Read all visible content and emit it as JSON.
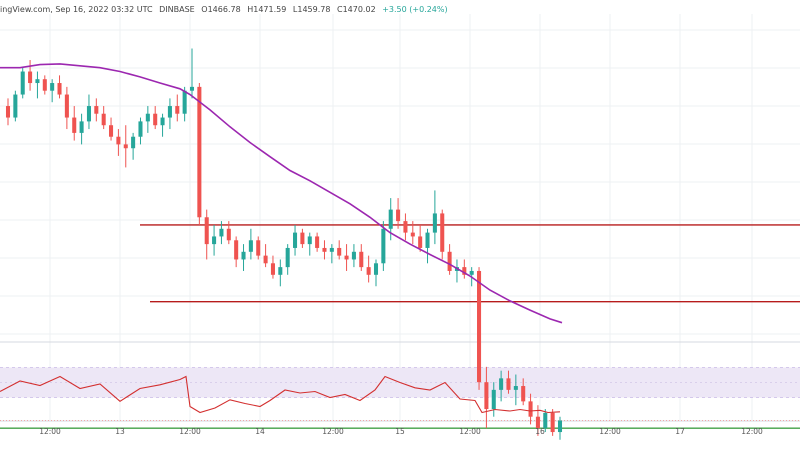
{
  "header": {
    "source": "ingView.com, Sep 16, 2022 03:32 UTC",
    "exchange": "DINBASE",
    "open": "O1466.78",
    "high": "H1471.59",
    "low": "L1459.78",
    "close": "C1470.02",
    "change": "+3.50 (+0.24%)"
  },
  "colors": {
    "up": "#26a69a",
    "down": "#ef5350",
    "ma": "#9c27b0",
    "resistance": "#b71c1c",
    "support": "#43a047",
    "rsi_line": "#d32f2f",
    "rsi_band": "#ede7f6",
    "grid": "#eef0f3"
  },
  "chart_data": [
    {
      "type": "candlestick",
      "title": "",
      "x_ticks": [
        "12:00",
        "13",
        "12:00",
        "14",
        "12:00",
        "15",
        "12:00",
        "16",
        "12:00",
        "17",
        "12:00"
      ],
      "ylim": [
        1415,
        1500
      ],
      "candles_ohlc": [
        [
          1476,
          1478,
          1471,
          1473
        ],
        [
          1473,
          1480,
          1472,
          1479
        ],
        [
          1479,
          1486,
          1478,
          1485
        ],
        [
          1485,
          1488,
          1480,
          1482
        ],
        [
          1482,
          1485,
          1478,
          1483
        ],
        [
          1483,
          1484,
          1479,
          1480
        ],
        [
          1480,
          1483,
          1477,
          1482
        ],
        [
          1482,
          1484,
          1478,
          1479
        ],
        [
          1479,
          1481,
          1470,
          1473
        ],
        [
          1473,
          1476,
          1467,
          1469
        ],
        [
          1469,
          1474,
          1466,
          1472
        ],
        [
          1472,
          1479,
          1470,
          1476
        ],
        [
          1476,
          1478,
          1472,
          1474
        ],
        [
          1474,
          1476,
          1470,
          1471
        ],
        [
          1471,
          1473,
          1467,
          1468
        ],
        [
          1468,
          1470,
          1463,
          1466
        ],
        [
          1466,
          1471,
          1460,
          1465
        ],
        [
          1465,
          1469,
          1462,
          1468
        ],
        [
          1468,
          1473,
          1466,
          1472
        ],
        [
          1472,
          1476,
          1469,
          1474
        ],
        [
          1474,
          1476,
          1470,
          1471
        ],
        [
          1471,
          1474,
          1468,
          1473
        ],
        [
          1473,
          1478,
          1470,
          1476
        ],
        [
          1476,
          1479,
          1472,
          1474
        ],
        [
          1474,
          1481,
          1472,
          1480
        ],
        [
          1480,
          1491,
          1478,
          1481
        ],
        [
          1481,
          1482,
          1445,
          1447
        ],
        [
          1447,
          1449,
          1436,
          1440
        ],
        [
          1440,
          1445,
          1437,
          1442
        ],
        [
          1442,
          1446,
          1440,
          1444
        ],
        [
          1444,
          1446,
          1440,
          1441
        ],
        [
          1441,
          1442,
          1434,
          1436
        ],
        [
          1436,
          1440,
          1433,
          1438
        ],
        [
          1438,
          1444,
          1436,
          1441
        ],
        [
          1441,
          1442,
          1436,
          1437
        ],
        [
          1437,
          1440,
          1434,
          1435
        ],
        [
          1435,
          1437,
          1431,
          1432
        ],
        [
          1432,
          1436,
          1429,
          1434
        ],
        [
          1434,
          1440,
          1432,
          1439
        ],
        [
          1439,
          1445,
          1437,
          1443
        ],
        [
          1443,
          1444,
          1439,
          1440
        ],
        [
          1440,
          1443,
          1437,
          1442
        ],
        [
          1442,
          1443,
          1438,
          1439
        ],
        [
          1439,
          1441,
          1436,
          1438
        ],
        [
          1438,
          1440,
          1435,
          1439
        ],
        [
          1439,
          1441,
          1436,
          1437
        ],
        [
          1437,
          1440,
          1433,
          1436
        ],
        [
          1436,
          1440,
          1434,
          1438
        ],
        [
          1438,
          1440,
          1433,
          1434
        ],
        [
          1434,
          1437,
          1430,
          1432
        ],
        [
          1432,
          1436,
          1429,
          1435
        ],
        [
          1435,
          1446,
          1433,
          1444
        ],
        [
          1444,
          1452,
          1441,
          1449
        ],
        [
          1449,
          1452,
          1444,
          1446
        ],
        [
          1446,
          1448,
          1441,
          1443
        ],
        [
          1443,
          1446,
          1440,
          1442
        ],
        [
          1442,
          1445,
          1438,
          1439
        ],
        [
          1439,
          1444,
          1435,
          1443
        ],
        [
          1443,
          1454,
          1440,
          1448
        ],
        [
          1448,
          1449,
          1436,
          1438
        ],
        [
          1438,
          1440,
          1432,
          1433
        ],
        [
          1433,
          1436,
          1430,
          1434
        ],
        [
          1434,
          1436,
          1431,
          1432
        ],
        [
          1432,
          1434,
          1429,
          1433
        ],
        [
          1433,
          1434,
          1402,
          1404
        ],
        [
          1404,
          1408,
          1392,
          1397
        ],
        [
          1397,
          1404,
          1395,
          1402
        ],
        [
          1402,
          1407,
          1399,
          1405
        ],
        [
          1405,
          1407,
          1401,
          1402
        ],
        [
          1402,
          1406,
          1398,
          1403
        ],
        [
          1403,
          1405,
          1398,
          1399
        ],
        [
          1399,
          1401,
          1393,
          1395
        ],
        [
          1395,
          1398,
          1390,
          1392
        ],
        [
          1392,
          1397,
          1391,
          1396
        ],
        [
          1396,
          1397,
          1390,
          1391
        ],
        [
          1391,
          1395,
          1389,
          1394
        ]
      ],
      "moving_average": [
        [
          0,
          1486
        ],
        [
          20,
          1486
        ],
        [
          40,
          1486.8
        ],
        [
          60,
          1487
        ],
        [
          80,
          1486.5
        ],
        [
          100,
          1486
        ],
        [
          120,
          1485
        ],
        [
          140,
          1483.6
        ],
        [
          160,
          1482
        ],
        [
          180,
          1480.5
        ],
        [
          190,
          1479
        ],
        [
          210,
          1475
        ],
        [
          230,
          1470.6
        ],
        [
          250,
          1466.5
        ],
        [
          270,
          1462.8
        ],
        [
          290,
          1459.2
        ],
        [
          310,
          1456.5
        ],
        [
          330,
          1453.5
        ],
        [
          350,
          1450.5
        ],
        [
          370,
          1447
        ],
        [
          390,
          1443
        ],
        [
          410,
          1440
        ],
        [
          430,
          1437.3
        ],
        [
          450,
          1434.7
        ],
        [
          470,
          1431.7
        ],
        [
          490,
          1428
        ],
        [
          510,
          1425.2
        ],
        [
          530,
          1422.8
        ],
        [
          550,
          1420.5
        ],
        [
          562,
          1419.5
        ]
      ],
      "horizontal_levels": [
        {
          "kind": "resistance",
          "value": 1445,
          "from": 140,
          "to": 800
        },
        {
          "kind": "support_upper",
          "value": 1425,
          "from": 150,
          "to": 800
        },
        {
          "kind": "support_lower",
          "value": 1392,
          "from": 0,
          "to": 800
        }
      ]
    },
    {
      "type": "line",
      "title": "",
      "ylim": [
        0,
        100
      ],
      "shaded_band": [
        30,
        70
      ],
      "values": [
        [
          0,
          38
        ],
        [
          20,
          52
        ],
        [
          40,
          46
        ],
        [
          60,
          58
        ],
        [
          80,
          42
        ],
        [
          100,
          48
        ],
        [
          120,
          25
        ],
        [
          140,
          42
        ],
        [
          160,
          47
        ],
        [
          180,
          54
        ],
        [
          186,
          58
        ],
        [
          190,
          18
        ],
        [
          200,
          10
        ],
        [
          215,
          16
        ],
        [
          230,
          27
        ],
        [
          245,
          22
        ],
        [
          260,
          18
        ],
        [
          270,
          26
        ],
        [
          285,
          40
        ],
        [
          300,
          36
        ],
        [
          315,
          38
        ],
        [
          330,
          30
        ],
        [
          345,
          34
        ],
        [
          360,
          26
        ],
        [
          375,
          40
        ],
        [
          385,
          58
        ],
        [
          400,
          50
        ],
        [
          415,
          43
        ],
        [
          430,
          40
        ],
        [
          445,
          50
        ],
        [
          460,
          28
        ],
        [
          475,
          26
        ],
        [
          482,
          10
        ],
        [
          495,
          14
        ],
        [
          510,
          12
        ],
        [
          520,
          14
        ],
        [
          530,
          12
        ],
        [
          540,
          13
        ],
        [
          548,
          10
        ],
        [
          560,
          11
        ]
      ]
    }
  ]
}
